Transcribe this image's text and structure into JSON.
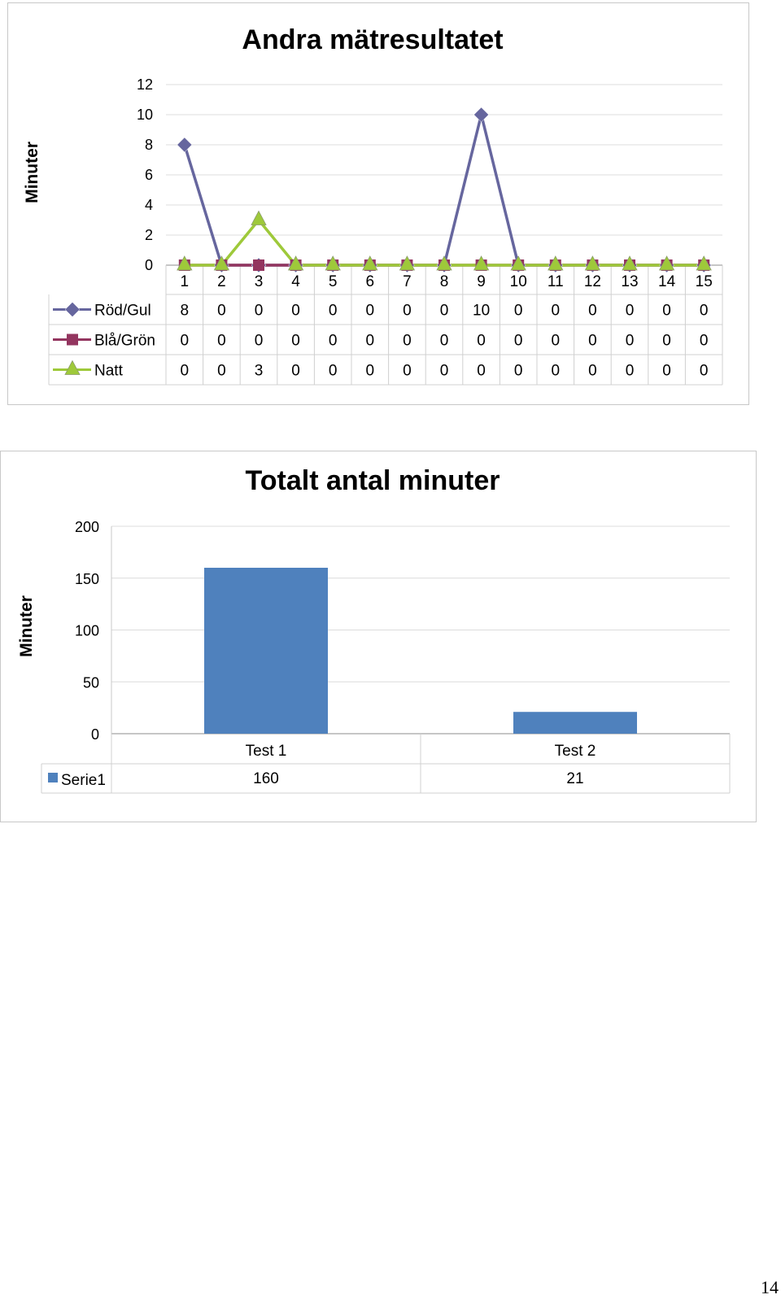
{
  "chart_data": [
    {
      "type": "line",
      "title": "Andra mätresultatet",
      "ylabel": "Minuter",
      "xlabel": "",
      "ylim": [
        0,
        12
      ],
      "yticks": [
        0,
        2,
        4,
        6,
        8,
        10,
        12
      ],
      "categories": [
        "1",
        "2",
        "3",
        "4",
        "5",
        "6",
        "7",
        "8",
        "9",
        "10",
        "11",
        "12",
        "13",
        "14",
        "15"
      ],
      "grid": true,
      "legend": "data-table",
      "series": [
        {
          "name": "Röd/Gul",
          "values": [
            8,
            0,
            0,
            0,
            0,
            0,
            0,
            0,
            10,
            0,
            0,
            0,
            0,
            0,
            0
          ],
          "color": "#66669e",
          "marker": "diamond"
        },
        {
          "name": "Blå/Grön",
          "values": [
            0,
            0,
            0,
            0,
            0,
            0,
            0,
            0,
            0,
            0,
            0,
            0,
            0,
            0,
            0
          ],
          "color": "#93355f",
          "marker": "square"
        },
        {
          "name": "Natt",
          "values": [
            0,
            0,
            3,
            0,
            0,
            0,
            0,
            0,
            0,
            0,
            0,
            0,
            0,
            0,
            0
          ],
          "color": "#9ec93a",
          "marker": "triangle"
        }
      ]
    },
    {
      "type": "bar",
      "title": "Totalt antal minuter",
      "ylabel": "Minuter",
      "xlabel": "",
      "ylim": [
        0,
        200
      ],
      "yticks": [
        0,
        50,
        100,
        150,
        200
      ],
      "categories": [
        "Test 1",
        "Test 2"
      ],
      "grid": true,
      "legend": "data-table",
      "series": [
        {
          "name": "Serie1",
          "values": [
            160,
            21
          ],
          "color": "#4f81bd"
        }
      ]
    }
  ],
  "page": {
    "number": "14"
  }
}
